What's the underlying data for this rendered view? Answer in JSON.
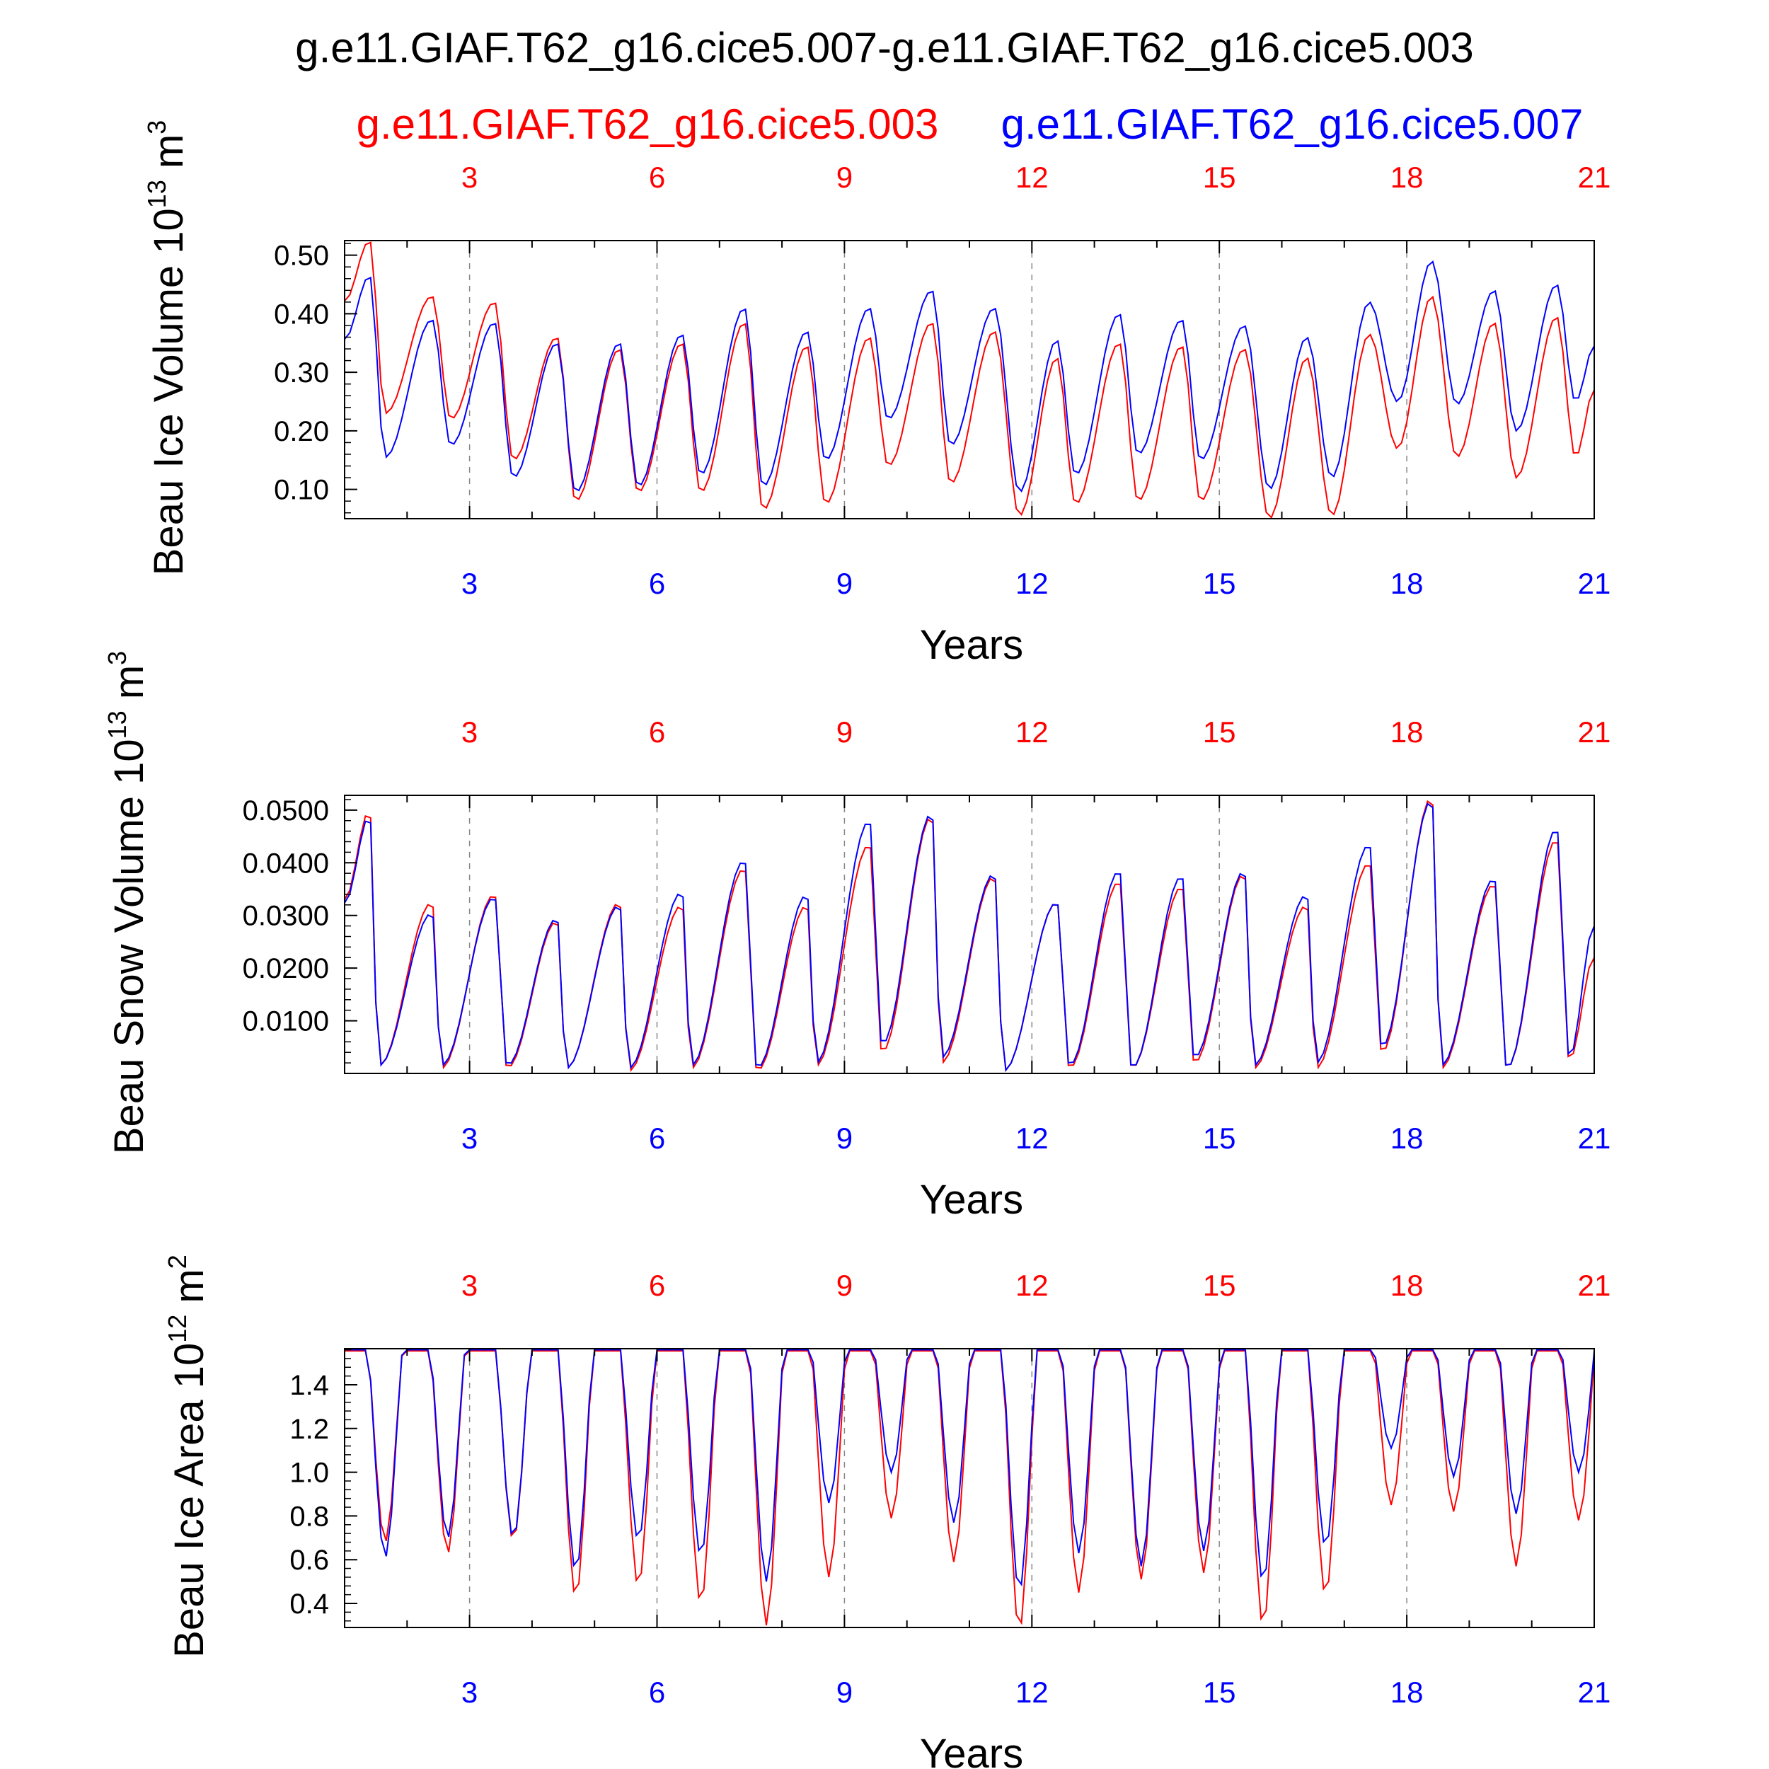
{
  "figure": {
    "title": "g.e11.GIAF.T62_g16.cice5.007-g.e11.GIAF.T62_g16.cice5.003",
    "legend_left": "g.e11.GIAF.T62_g16.cice5.003",
    "legend_right": "g.e11.GIAF.T62_g16.cice5.007",
    "colors": {
      "case_003": "#ff0000",
      "case_007": "#0000ff",
      "axis": "#000000",
      "gridline": "#888888"
    }
  },
  "chart_data": [
    {
      "type": "line",
      "ylabel_main": "Beau Ice Volume 10",
      "ylabel_exp": "13",
      "ylabel_unit": " m",
      "ylabel_unit_exp": "3",
      "xlabel": "Years",
      "xlim": [
        1,
        21
      ],
      "ylim": [
        0.05,
        0.525
      ],
      "yticks": [
        "0.10",
        "0.20",
        "0.30",
        "0.40",
        "0.50"
      ],
      "xticks": [
        "3",
        "6",
        "9",
        "12",
        "15",
        "18",
        "21"
      ],
      "top_xticks": [
        "3",
        "6",
        "9",
        "12",
        "15",
        "18",
        "21"
      ],
      "grid": "dashed vertical lines at 3-year intervals",
      "series": [
        {
          "name": "g.e11.GIAF.T62_g16.cice5.003",
          "color": "#ff0000",
          "peak_times": [
            1.4,
            2.4,
            3.4,
            4.4,
            5.4,
            6.4,
            7.4,
            8.4,
            9.4,
            10.4,
            11.4,
            12.4,
            13.4,
            14.4,
            15.4,
            16.4,
            17.4,
            18.4,
            19.4,
            20.4
          ],
          "peaks": [
            0.525,
            0.43,
            0.42,
            0.36,
            0.34,
            0.35,
            0.385,
            0.345,
            0.36,
            0.385,
            0.37,
            0.325,
            0.35,
            0.345,
            0.34,
            0.325,
            0.365,
            0.43,
            0.385,
            0.395
          ],
          "trough_times": [
            1.65,
            2.7,
            3.7,
            4.7,
            5.7,
            6.7,
            7.7,
            8.7,
            9.7,
            10.7,
            11.8,
            12.7,
            13.7,
            14.7,
            15.8,
            16.8,
            17.85,
            18.8,
            19.75,
            20.7
          ],
          "troughs": [
            0.23,
            0.22,
            0.15,
            0.08,
            0.095,
            0.095,
            0.065,
            0.075,
            0.14,
            0.11,
            0.055,
            0.075,
            0.08,
            0.08,
            0.05,
            0.055,
            0.17,
            0.155,
            0.12,
            0.155
          ],
          "end_value": 0.27
        },
        {
          "name": "g.e11.GIAF.T62_g16.cice5.007",
          "color": "#0000ff",
          "peak_times": [
            1.4,
            2.4,
            3.4,
            4.4,
            5.4,
            6.4,
            7.4,
            8.4,
            9.4,
            10.4,
            11.4,
            12.4,
            13.4,
            14.4,
            15.4,
            16.4,
            17.4,
            18.4,
            19.4,
            20.4
          ],
          "peaks": [
            0.465,
            0.39,
            0.385,
            0.35,
            0.35,
            0.365,
            0.41,
            0.37,
            0.41,
            0.44,
            0.41,
            0.355,
            0.4,
            0.39,
            0.38,
            0.36,
            0.42,
            0.49,
            0.44,
            0.45
          ],
          "trough_times": [
            1.65,
            2.7,
            3.7,
            4.7,
            5.7,
            6.7,
            7.7,
            8.7,
            9.7,
            10.7,
            11.8,
            12.7,
            13.7,
            14.7,
            15.8,
            16.8,
            17.85,
            18.8,
            19.75,
            20.7
          ],
          "troughs": [
            0.155,
            0.175,
            0.12,
            0.095,
            0.105,
            0.125,
            0.105,
            0.15,
            0.22,
            0.175,
            0.095,
            0.125,
            0.16,
            0.15,
            0.1,
            0.12,
            0.25,
            0.245,
            0.2,
            0.25
          ],
          "end_value": 0.345
        }
      ]
    },
    {
      "type": "line",
      "ylabel_main": "Beau Snow Volume 10",
      "ylabel_exp": "13",
      "ylabel_unit": " m",
      "ylabel_unit_exp": "3",
      "xlabel": "Years",
      "xlim": [
        1,
        21
      ],
      "ylim": [
        0,
        0.0528
      ],
      "yticks": [
        "0.0100",
        "0.0200",
        "0.0300",
        "0.0400",
        "0.0500"
      ],
      "xticks": [
        "3",
        "6",
        "9",
        "12",
        "15",
        "18",
        "21"
      ],
      "top_xticks": [
        "3",
        "6",
        "9",
        "12",
        "15",
        "18",
        "21"
      ],
      "grid": "dashed vertical lines at 3-year intervals",
      "series": [
        {
          "name": "g.e11.GIAF.T62_g16.cice5.003",
          "color": "#ff0000",
          "peak_times": [
            1.4,
            2.4,
            3.4,
            4.4,
            5.4,
            6.4,
            7.4,
            8.4,
            9.4,
            10.4,
            11.4,
            12.4,
            13.4,
            14.4,
            15.4,
            16.4,
            17.4,
            18.4,
            19.4,
            20.4
          ],
          "peaks": [
            0.05,
            0.0325,
            0.034,
            0.029,
            0.0325,
            0.032,
            0.039,
            0.032,
            0.0435,
            0.049,
            0.0375,
            0.0325,
            0.0365,
            0.0355,
            0.038,
            0.032,
            0.04,
            0.0525,
            0.036,
            0.0445
          ],
          "trough_times": [
            1.55,
            2.55,
            3.6,
            4.55,
            5.55,
            6.55,
            7.6,
            8.55,
            9.6,
            10.55,
            11.55,
            12.6,
            13.6,
            14.6,
            15.55,
            16.55,
            17.6,
            18.55,
            19.6,
            20.6
          ],
          "troughs": [
            0.0015,
            0.001,
            0.001,
            0.001,
            0.0005,
            0.001,
            0.0005,
            0.0015,
            0.004,
            0.002,
            0.0005,
            0.001,
            0.001,
            0.002,
            0.001,
            0.001,
            0.004,
            0.001,
            0.001,
            0.0025
          ],
          "end_value": 0.022
        },
        {
          "name": "g.e11.GIAF.T62_g16.cice5.007",
          "color": "#0000ff",
          "peak_times": [
            1.4,
            2.4,
            3.4,
            4.4,
            5.4,
            6.4,
            7.4,
            8.4,
            9.4,
            10.4,
            11.4,
            12.4,
            13.4,
            14.4,
            15.4,
            16.4,
            17.4,
            18.4,
            19.4,
            20.4
          ],
          "peaks": [
            0.049,
            0.0305,
            0.0335,
            0.0295,
            0.032,
            0.0345,
            0.0405,
            0.034,
            0.048,
            0.0495,
            0.038,
            0.0325,
            0.0385,
            0.0375,
            0.0385,
            0.034,
            0.0435,
            0.052,
            0.037,
            0.0465
          ],
          "trough_times": [
            1.55,
            2.55,
            3.6,
            4.55,
            5.55,
            6.55,
            7.6,
            8.55,
            9.6,
            10.55,
            11.55,
            12.6,
            13.6,
            14.6,
            15.55,
            16.55,
            17.6,
            18.55,
            19.6,
            20.6
          ],
          "troughs": [
            0.0015,
            0.0015,
            0.0015,
            0.001,
            0.001,
            0.0015,
            0.001,
            0.002,
            0.0055,
            0.003,
            0.0005,
            0.0015,
            0.001,
            0.003,
            0.0015,
            0.002,
            0.005,
            0.0015,
            0.001,
            0.003
          ],
          "end_value": 0.028
        }
      ]
    },
    {
      "type": "line",
      "ylabel_main": "Beau Ice Area 10",
      "ylabel_exp": "12",
      "ylabel_unit": " m",
      "ylabel_unit_exp": "2",
      "xlabel": "Years",
      "xlim": [
        1,
        21
      ],
      "ylim": [
        0.29,
        1.565
      ],
      "yticks": [
        "0.4",
        "0.6",
        "0.8",
        "1.0",
        "1.2",
        "1.4"
      ],
      "xticks": [
        "3",
        "6",
        "9",
        "12",
        "15",
        "18",
        "21"
      ],
      "top_xticks": [
        "3",
        "6",
        "9",
        "12",
        "15",
        "18",
        "21"
      ],
      "grid": "dashed vertical lines at 3-year intervals",
      "series": [
        {
          "name": "g.e11.GIAF.T62_g16.cice5.003",
          "color": "#ff0000",
          "plateau": 1.555,
          "trough_times": [
            1.65,
            2.65,
            3.7,
            4.7,
            5.7,
            6.7,
            7.75,
            8.75,
            9.75,
            10.75,
            11.8,
            12.75,
            13.75,
            14.75,
            15.7,
            16.7,
            17.75,
            18.75,
            19.75,
            20.75
          ],
          "troughs": [
            0.68,
            0.63,
            0.69,
            0.43,
            0.48,
            0.4,
            0.3,
            0.52,
            0.79,
            0.59,
            0.28,
            0.45,
            0.51,
            0.54,
            0.3,
            0.44,
            0.85,
            0.82,
            0.57,
            0.78
          ],
          "end_value": 1.545
        },
        {
          "name": "g.e11.GIAF.T62_g16.cice5.007",
          "color": "#0000ff",
          "plateau": 1.56,
          "trough_times": [
            1.65,
            2.65,
            3.7,
            4.7,
            5.7,
            6.7,
            7.75,
            8.75,
            9.75,
            10.75,
            11.8,
            12.75,
            13.75,
            14.75,
            15.7,
            16.7,
            17.75,
            18.75,
            19.75,
            20.75
          ],
          "troughs": [
            0.61,
            0.7,
            0.7,
            0.55,
            0.69,
            0.62,
            0.5,
            0.86,
            1.0,
            0.77,
            0.46,
            0.63,
            0.57,
            0.64,
            0.5,
            0.66,
            1.11,
            0.98,
            0.81,
            1.0
          ],
          "end_value": 1.555
        }
      ]
    }
  ]
}
